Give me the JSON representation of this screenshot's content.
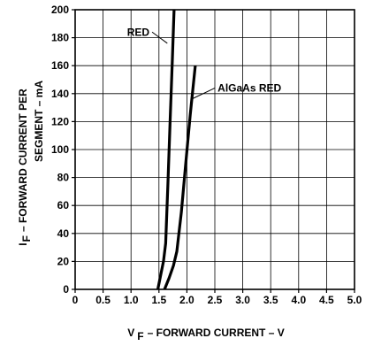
{
  "chart_data": {
    "type": "line",
    "title": "",
    "xlabel": {
      "main": "V",
      "sub": "F",
      "rest": "– FORWARD CURRENT – V"
    },
    "ylabel": {
      "line1_main": "I",
      "line1_sub": "F",
      "line1_rest": "– FORWARD CURRENT PER",
      "line2": "SEGMENT – mA"
    },
    "xlim": [
      0,
      5.0
    ],
    "ylim": [
      0,
      200
    ],
    "grid": true,
    "x_ticks": [
      {
        "v": 0,
        "label": "0"
      },
      {
        "v": 0.5,
        "label": "0.5"
      },
      {
        "v": 1.0,
        "label": "1.0"
      },
      {
        "v": 1.5,
        "label": "1.5"
      },
      {
        "v": 2.0,
        "label": "2.0"
      },
      {
        "v": 2.5,
        "label": "2.5"
      },
      {
        "v": 3.0,
        "label": "3.0"
      },
      {
        "v": 3.5,
        "label": "3.5"
      },
      {
        "v": 4.0,
        "label": "4.0"
      },
      {
        "v": 4.5,
        "label": "4.5"
      },
      {
        "v": 5.0,
        "label": "5.0"
      }
    ],
    "y_ticks": [
      {
        "v": 0,
        "label": "0"
      },
      {
        "v": 20,
        "label": "20"
      },
      {
        "v": 40,
        "label": "40"
      },
      {
        "v": 60,
        "label": "60"
      },
      {
        "v": 80,
        "label": "80"
      },
      {
        "v": 100,
        "label": "100"
      },
      {
        "v": 120,
        "label": "120"
      },
      {
        "v": 140,
        "label": "140"
      },
      {
        "v": 160,
        "label": "160"
      },
      {
        "v": 180,
        "label": "180"
      },
      {
        "v": 200,
        "label": "200"
      }
    ],
    "series": [
      {
        "name": "RED",
        "points": [
          [
            1.48,
            0
          ],
          [
            1.53,
            10
          ],
          [
            1.58,
            20
          ],
          [
            1.62,
            33
          ],
          [
            1.66,
            75
          ],
          [
            1.7,
            120
          ],
          [
            1.74,
            165
          ],
          [
            1.77,
            200
          ]
        ]
      },
      {
        "name": "AlGaAs RED",
        "points": [
          [
            1.6,
            0
          ],
          [
            1.68,
            8
          ],
          [
            1.76,
            17
          ],
          [
            1.82,
            27
          ],
          [
            1.9,
            55
          ],
          [
            1.98,
            90
          ],
          [
            2.06,
            125
          ],
          [
            2.15,
            160
          ]
        ]
      }
    ],
    "annotations": [
      {
        "series": "RED",
        "text": "RED",
        "at": [
          1.33,
          184
        ],
        "target": [
          1.65,
          176
        ]
      },
      {
        "series": "AlGaAs RED",
        "text": "AlGaAs RED",
        "at": [
          2.55,
          144
        ],
        "target": [
          2.08,
          136
        ]
      }
    ]
  }
}
